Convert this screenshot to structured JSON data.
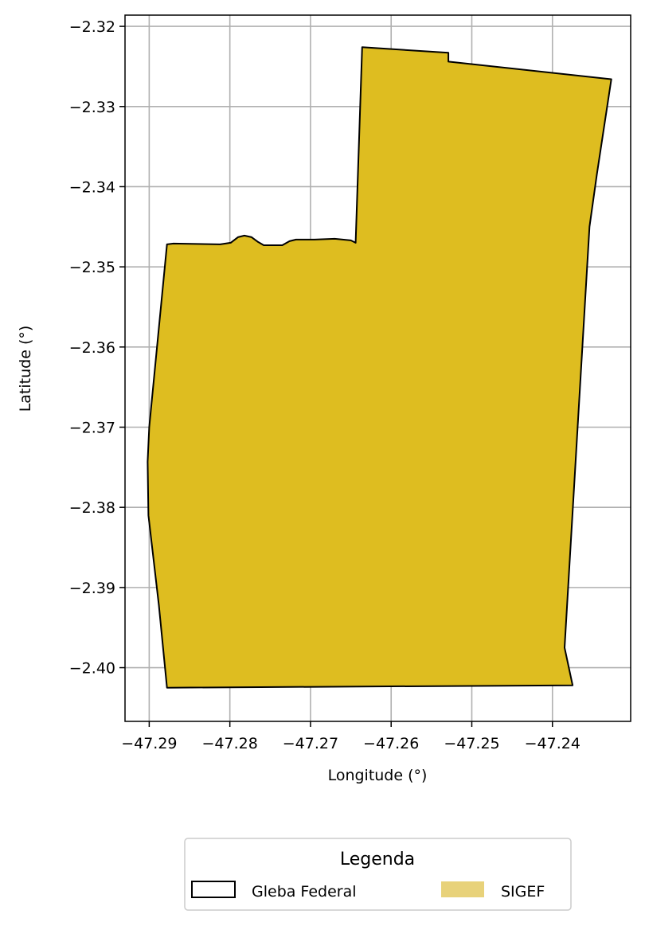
{
  "chart_data": {
    "type": "map",
    "xlabel": "Longitude (°)",
    "ylabel": "Latitude (°)",
    "xlim": [
      -47.293,
      -47.2303
    ],
    "ylim": [
      -2.4067,
      -2.3186
    ],
    "xticks": [
      -47.29,
      -47.28,
      -47.27,
      -47.26,
      -47.25,
      -47.24
    ],
    "xtick_labels": [
      "−47.29",
      "−47.28",
      "−47.27",
      "−47.26",
      "−47.25",
      "−47.24"
    ],
    "yticks": [
      -2.32,
      -2.33,
      -2.34,
      -2.35,
      -2.36,
      -2.37,
      -2.38,
      -2.39,
      -2.4
    ],
    "ytick_labels": [
      "−2.32",
      "−2.33",
      "−2.34",
      "−2.35",
      "−2.36",
      "−2.37",
      "−2.38",
      "−2.39",
      "−2.40"
    ],
    "grid": true,
    "legend": {
      "title": "Legenda",
      "placement": "below",
      "entries": [
        {
          "label": "Gleba Federal",
          "style": "outline",
          "color": "#000000"
        },
        {
          "label": "SIGEF",
          "style": "fill",
          "color": "#e8d27a"
        }
      ]
    },
    "layers": [
      {
        "name": "SIGEF",
        "fill": "#debd20",
        "stroke": "#000000",
        "polygon": [
          [
            -47.2636,
            -2.3226
          ],
          [
            -47.2529,
            -2.3233
          ],
          [
            -47.2529,
            -2.3244
          ],
          [
            -47.2327,
            -2.3266
          ],
          [
            -47.2345,
            -2.3385
          ],
          [
            -47.2354,
            -2.345
          ],
          [
            -47.2385,
            -2.3975
          ],
          [
            -47.2375,
            -2.4022
          ],
          [
            -47.2878,
            -2.4025
          ],
          [
            -47.2888,
            -2.3922
          ],
          [
            -47.2901,
            -2.381
          ],
          [
            -47.2902,
            -2.3743
          ],
          [
            -47.29,
            -2.37
          ],
          [
            -47.2878,
            -2.3472
          ],
          [
            -47.287,
            -2.3471
          ],
          [
            -47.2812,
            -2.3472
          ],
          [
            -47.2799,
            -2.347
          ],
          [
            -47.279,
            -2.3463
          ],
          [
            -47.2782,
            -2.3461
          ],
          [
            -47.2773,
            -2.3463
          ],
          [
            -47.2765,
            -2.3469
          ],
          [
            -47.2758,
            -2.3473
          ],
          [
            -47.2735,
            -2.3473
          ],
          [
            -47.2726,
            -2.3468
          ],
          [
            -47.2718,
            -2.3466
          ],
          [
            -47.2695,
            -2.3466
          ],
          [
            -47.267,
            -2.3465
          ],
          [
            -47.265,
            -2.3467
          ],
          [
            -47.2644,
            -2.347
          ]
        ]
      }
    ]
  }
}
